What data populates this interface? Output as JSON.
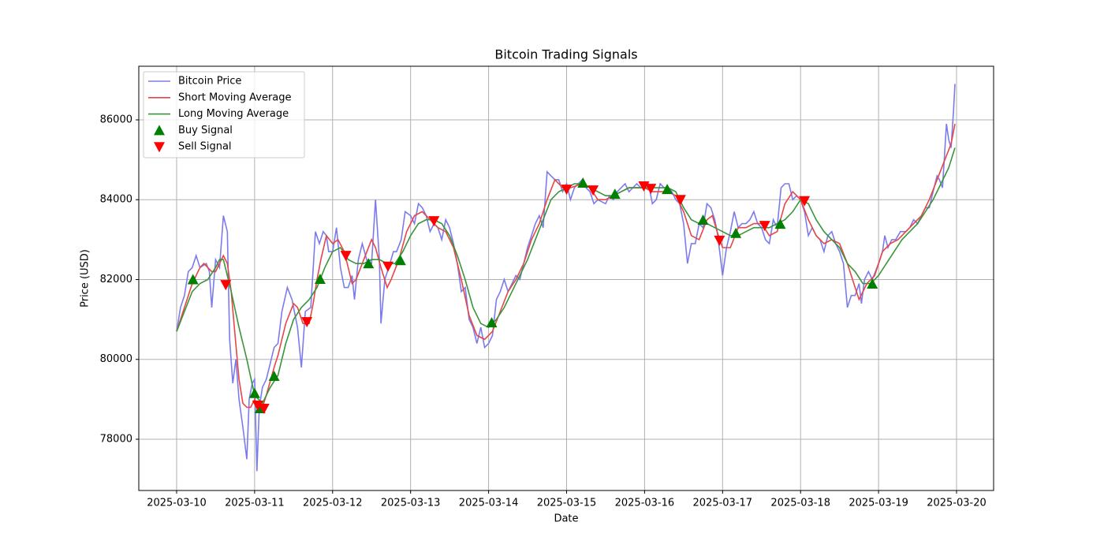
{
  "chart_data": {
    "type": "line",
    "title": "Bitcoin Trading Signals",
    "x_label": "Date",
    "y_label": "Price (USD)",
    "xlim": [
      -0.485,
      10.475
    ],
    "ylim": [
      76716,
      87343
    ],
    "xticks": [
      {
        "value": 0,
        "label": "2025-03-10"
      },
      {
        "value": 1,
        "label": "2025-03-11"
      },
      {
        "value": 2,
        "label": "2025-03-12"
      },
      {
        "value": 3,
        "label": "2025-03-13"
      },
      {
        "value": 4,
        "label": "2025-03-14"
      },
      {
        "value": 5,
        "label": "2025-03-15"
      },
      {
        "value": 6,
        "label": "2025-03-16"
      },
      {
        "value": 7,
        "label": "2025-03-17"
      },
      {
        "value": 8,
        "label": "2025-03-18"
      },
      {
        "value": 9,
        "label": "2025-03-19"
      },
      {
        "value": 10,
        "label": "2025-03-20"
      }
    ],
    "yticks": [
      78000,
      80000,
      82000,
      84000,
      86000
    ],
    "grid": true,
    "legend": "upper left",
    "series": [
      {
        "name": "Bitcoin Price",
        "color": "#7b7bef",
        "mark": "line",
        "x": [
          0,
          0.05,
          0.1,
          0.15,
          0.2,
          0.25,
          0.3,
          0.38,
          0.42,
          0.45,
          0.5,
          0.55,
          0.6,
          0.65,
          0.68,
          0.72,
          0.76,
          0.8,
          0.85,
          0.9,
          0.93,
          0.97,
          1.0,
          1.03,
          1.06,
          1.1,
          1.15,
          1.2,
          1.25,
          1.3,
          1.35,
          1.42,
          1.48,
          1.55,
          1.6,
          1.65,
          1.72,
          1.78,
          1.83,
          1.88,
          1.92,
          1.95,
          2.0,
          2.05,
          2.1,
          2.15,
          2.2,
          2.25,
          2.28,
          2.33,
          2.38,
          2.45,
          2.5,
          2.55,
          2.6,
          2.62,
          2.67,
          2.72,
          2.78,
          2.82,
          2.88,
          2.93,
          3.0,
          3.05,
          3.1,
          3.15,
          3.2,
          3.25,
          3.3,
          3.35,
          3.4,
          3.45,
          3.5,
          3.55,
          3.6,
          3.65,
          3.7,
          3.75,
          3.8,
          3.85,
          3.9,
          3.95,
          4.0,
          4.05,
          4.1,
          4.15,
          4.2,
          4.25,
          4.3,
          4.35,
          4.4,
          4.45,
          4.5,
          4.55,
          4.6,
          4.65,
          4.7,
          4.75,
          4.8,
          4.85,
          4.9,
          4.95,
          5.0,
          5.05,
          5.1,
          5.15,
          5.2,
          5.25,
          5.3,
          5.35,
          5.4,
          5.5,
          5.55,
          5.6,
          5.65,
          5.7,
          5.75,
          5.8,
          5.85,
          5.9,
          5.95,
          6.0,
          6.05,
          6.1,
          6.15,
          6.2,
          6.25,
          6.3,
          6.35,
          6.4,
          6.45,
          6.5,
          6.55,
          6.6,
          6.65,
          6.7,
          6.75,
          6.8,
          6.85,
          6.9,
          6.93,
          6.97,
          7.0,
          7.05,
          7.1,
          7.15,
          7.2,
          7.25,
          7.3,
          7.35,
          7.4,
          7.45,
          7.5,
          7.55,
          7.6,
          7.65,
          7.7,
          7.75,
          7.8,
          7.85,
          7.9,
          7.95,
          8.0,
          8.05,
          8.1,
          8.15,
          8.2,
          8.25,
          8.3,
          8.35,
          8.4,
          8.45,
          8.5,
          8.55,
          8.6,
          8.65,
          8.7,
          8.75,
          8.78,
          8.82,
          8.87,
          8.92,
          9.0,
          9.05,
          9.08,
          9.12,
          9.17,
          9.22,
          9.28,
          9.35,
          9.4,
          9.45,
          9.5,
          9.55,
          9.6,
          9.65,
          9.7,
          9.75,
          9.78,
          9.82,
          9.87,
          9.9,
          9.93,
          9.96,
          9.98
        ],
        "values": [
          80700,
          81300,
          81600,
          82200,
          82300,
          82600,
          82300,
          82400,
          82200,
          81300,
          82500,
          82300,
          83600,
          83200,
          80500,
          79400,
          80000,
          79000,
          78300,
          77500,
          79000,
          79400,
          79500,
          77200,
          78800,
          79300,
          79500,
          79900,
          80300,
          80400,
          81200,
          81800,
          81500,
          80800,
          79800,
          81200,
          81300,
          83200,
          82900,
          83200,
          83100,
          82700,
          82700,
          83300,
          82300,
          81800,
          81800,
          82100,
          81500,
          82500,
          82900,
          82400,
          82400,
          84000,
          82500,
          80900,
          82000,
          82300,
          82700,
          82700,
          83000,
          83700,
          83600,
          83400,
          83900,
          83800,
          83600,
          83200,
          83400,
          83300,
          83000,
          83500,
          83300,
          82900,
          82400,
          81700,
          81800,
          81000,
          80800,
          80400,
          80800,
          80300,
          80400,
          80600,
          81500,
          81700,
          82000,
          81700,
          81900,
          82100,
          82000,
          82400,
          82800,
          83100,
          83400,
          83600,
          83300,
          84700,
          84600,
          84500,
          84500,
          84200,
          84400,
          84000,
          84300,
          84400,
          84500,
          84300,
          84200,
          83900,
          84000,
          83900,
          84100,
          84000,
          84200,
          84300,
          84400,
          84200,
          84300,
          84400,
          84300,
          84400,
          84400,
          83900,
          84000,
          84400,
          84300,
          84300,
          84200,
          84000,
          83900,
          83400,
          82400,
          82900,
          82900,
          83400,
          83300,
          83900,
          83800,
          83500,
          83200,
          82600,
          82100,
          82800,
          83200,
          83700,
          83300,
          83400,
          83400,
          83500,
          83700,
          83400,
          83300,
          83000,
          82900,
          83500,
          83300,
          84300,
          84400,
          84400,
          84000,
          84100,
          84000,
          83700,
          83100,
          83300,
          83100,
          83000,
          82700,
          83100,
          83200,
          82900,
          82700,
          82400,
          81300,
          81600,
          81600,
          81900,
          81400,
          82000,
          82200,
          82000,
          82400,
          82700,
          83100,
          82800,
          83000,
          83000,
          83200,
          83200,
          83300,
          83500,
          83400,
          83600,
          83800,
          83800,
          84200,
          84600,
          84500,
          84300,
          85900,
          85500,
          85300,
          86200,
          86900
        ]
      },
      {
        "name": "Short Moving Average",
        "color": "#e64646",
        "mark": "line",
        "x": [
          0,
          0.1,
          0.2,
          0.3,
          0.35,
          0.45,
          0.5,
          0.6,
          0.65,
          0.7,
          0.75,
          0.8,
          0.85,
          0.9,
          0.95,
          1.0,
          1.05,
          1.1,
          1.15,
          1.25,
          1.3,
          1.4,
          1.5,
          1.55,
          1.62,
          1.7,
          1.75,
          1.8,
          1.85,
          1.92,
          2.0,
          2.07,
          2.15,
          2.25,
          2.3,
          2.4,
          2.5,
          2.55,
          2.62,
          2.7,
          2.75,
          2.85,
          2.95,
          3.05,
          3.15,
          3.25,
          3.35,
          3.45,
          3.55,
          3.65,
          3.75,
          3.85,
          3.95,
          4.05,
          4.15,
          4.25,
          4.35,
          4.45,
          4.55,
          4.65,
          4.75,
          4.85,
          4.95,
          5.05,
          5.2,
          5.3,
          5.4,
          5.5,
          5.6,
          5.7,
          5.8,
          5.9,
          6.0,
          6.1,
          6.2,
          6.3,
          6.4,
          6.5,
          6.6,
          6.7,
          6.8,
          6.87,
          6.93,
          7.0,
          7.1,
          7.2,
          7.3,
          7.4,
          7.5,
          7.6,
          7.7,
          7.8,
          7.9,
          8.0,
          8.1,
          8.2,
          8.3,
          8.4,
          8.5,
          8.6,
          8.7,
          8.75,
          8.85,
          8.95,
          9.05,
          9.15,
          9.25,
          9.35,
          9.45,
          9.55,
          9.65,
          9.75,
          9.85,
          9.93,
          9.98
        ],
        "values": [
          80700,
          81300,
          81900,
          82300,
          82400,
          82200,
          82200,
          82600,
          82400,
          81700,
          80600,
          79500,
          78900,
          78800,
          78800,
          79000,
          78800,
          78800,
          79100,
          79800,
          80100,
          80900,
          81400,
          81300,
          80900,
          80900,
          81400,
          82000,
          82500,
          83100,
          82900,
          83000,
          82700,
          81900,
          82000,
          82500,
          83000,
          82800,
          82300,
          81800,
          82000,
          82500,
          83200,
          83600,
          83700,
          83500,
          83300,
          83200,
          82800,
          82000,
          81100,
          80600,
          80500,
          80700,
          81200,
          81700,
          82000,
          82400,
          83000,
          83400,
          84000,
          84500,
          84300,
          84300,
          84400,
          84300,
          84000,
          84000,
          84100,
          84200,
          84300,
          84300,
          84300,
          84200,
          84200,
          84200,
          84100,
          83700,
          83100,
          83000,
          83500,
          83600,
          83200,
          82800,
          82800,
          83300,
          83300,
          83400,
          83400,
          83100,
          83200,
          83900,
          84200,
          84000,
          83500,
          83100,
          82900,
          83000,
          82900,
          82400,
          81800,
          81500,
          81900,
          82100,
          82700,
          82900,
          83000,
          83200,
          83400,
          83600,
          84000,
          84500,
          85000,
          85400,
          85900
        ]
      },
      {
        "name": "Long Moving Average",
        "color": "#3a953a",
        "mark": "line",
        "x": [
          0,
          0.1,
          0.2,
          0.3,
          0.4,
          0.5,
          0.55,
          0.6,
          0.7,
          0.8,
          0.9,
          1.0,
          1.1,
          1.2,
          1.3,
          1.4,
          1.5,
          1.6,
          1.7,
          1.8,
          1.9,
          2.0,
          2.1,
          2.2,
          2.3,
          2.4,
          2.5,
          2.6,
          2.7,
          2.8,
          2.9,
          3.0,
          3.1,
          3.2,
          3.3,
          3.4,
          3.5,
          3.6,
          3.7,
          3.8,
          3.9,
          4.0,
          4.1,
          4.2,
          4.3,
          4.4,
          4.5,
          4.6,
          4.7,
          4.8,
          4.9,
          5.0,
          5.1,
          5.2,
          5.3,
          5.4,
          5.5,
          5.6,
          5.7,
          5.8,
          5.9,
          6.0,
          6.1,
          6.2,
          6.3,
          6.4,
          6.5,
          6.6,
          6.7,
          6.8,
          6.9,
          7.0,
          7.1,
          7.2,
          7.3,
          7.4,
          7.5,
          7.6,
          7.7,
          7.8,
          7.9,
          8.0,
          8.1,
          8.2,
          8.3,
          8.4,
          8.5,
          8.6,
          8.7,
          8.8,
          8.9,
          9.0,
          9.1,
          9.2,
          9.3,
          9.4,
          9.5,
          9.6,
          9.7,
          9.8,
          9.9,
          9.98
        ],
        "values": [
          80700,
          81200,
          81700,
          81900,
          82000,
          82300,
          82500,
          82500,
          81700,
          80800,
          80000,
          79100,
          78900,
          79300,
          79600,
          80400,
          81000,
          81300,
          81500,
          81800,
          82300,
          82700,
          82800,
          82500,
          82400,
          82400,
          82500,
          82500,
          82400,
          82400,
          82700,
          83100,
          83400,
          83500,
          83500,
          83400,
          83100,
          82600,
          82000,
          81300,
          80900,
          80800,
          81000,
          81300,
          81700,
          82100,
          82500,
          83000,
          83500,
          84000,
          84200,
          84300,
          84400,
          84400,
          84300,
          84200,
          84100,
          84100,
          84200,
          84300,
          84300,
          84300,
          84300,
          84300,
          84300,
          84200,
          83800,
          83500,
          83400,
          83400,
          83300,
          83200,
          83100,
          83100,
          83200,
          83300,
          83300,
          83300,
          83400,
          83500,
          83700,
          84000,
          83900,
          83500,
          83200,
          83000,
          82800,
          82400,
          82200,
          81900,
          81900,
          82100,
          82400,
          82700,
          83000,
          83200,
          83400,
          83700,
          84000,
          84400,
          84800,
          85300
        ]
      },
      {
        "name": "Buy Signal",
        "color": "#008000",
        "mark": "triangle-up",
        "x": [
          0.21,
          1.0,
          1.07,
          1.25,
          1.84,
          2.46,
          2.87,
          4.04,
          5.21,
          5.62,
          6.29,
          6.75,
          7.17,
          7.74,
          8.92
        ],
        "values": [
          82000,
          79150,
          78770,
          79580,
          82010,
          82400,
          82480,
          80920,
          84420,
          84140,
          84260,
          83490,
          83160,
          83390,
          81890
        ]
      },
      {
        "name": "Sell Signal",
        "color": "#ff0000",
        "mark": "triangle-down",
        "x": [
          0.63,
          1.04,
          1.12,
          1.67,
          2.17,
          2.71,
          3.3,
          5.0,
          5.34,
          5.99,
          6.08,
          6.46,
          6.96,
          7.54,
          8.05
        ],
        "values": [
          81870,
          78850,
          78770,
          80940,
          82600,
          82330,
          83470,
          84260,
          84240,
          84340,
          84280,
          84000,
          82980,
          83350,
          83970
        ]
      }
    ]
  }
}
